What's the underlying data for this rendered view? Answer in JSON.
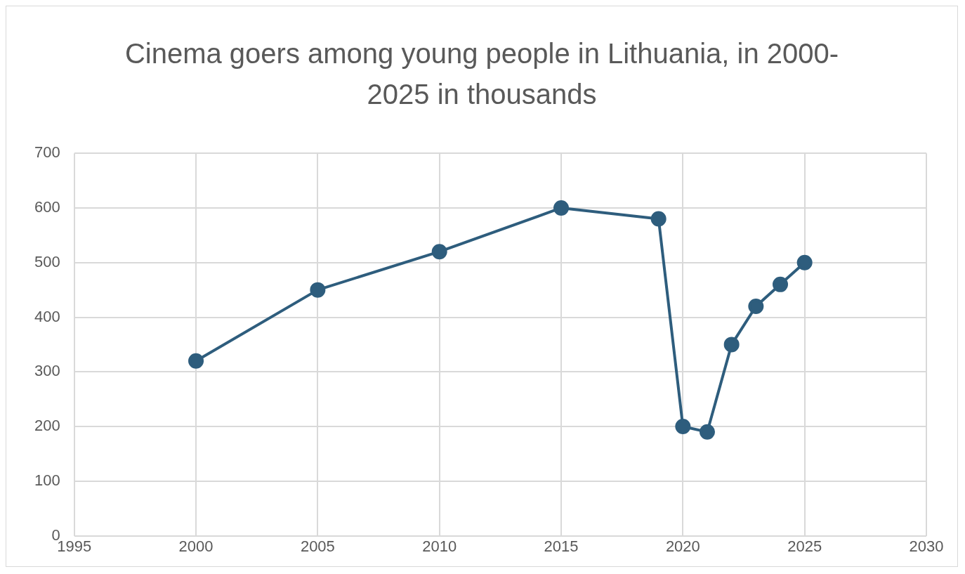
{
  "chart_data": {
    "type": "line",
    "title": "Cinema goers among young people in Lithuania, in 2000-2025 in thousands",
    "x": [
      2000,
      2005,
      2010,
      2015,
      2019,
      2020,
      2021,
      2022,
      2023,
      2024,
      2025
    ],
    "series": [
      {
        "color": "#2e5d7d",
        "values": [
          320,
          450,
          520,
          600,
          580,
          200,
          190,
          350,
          420,
          460,
          500
        ]
      }
    ],
    "xlim": [
      1995,
      2030
    ],
    "xticks": [
      1995,
      2000,
      2005,
      2010,
      2015,
      2020,
      2025,
      2030
    ],
    "ylim": [
      0,
      700
    ],
    "yticks": [
      0,
      100,
      200,
      300,
      400,
      500,
      600,
      700
    ],
    "grid": true,
    "legend": false,
    "marker": "circle",
    "line_style": "solid"
  }
}
